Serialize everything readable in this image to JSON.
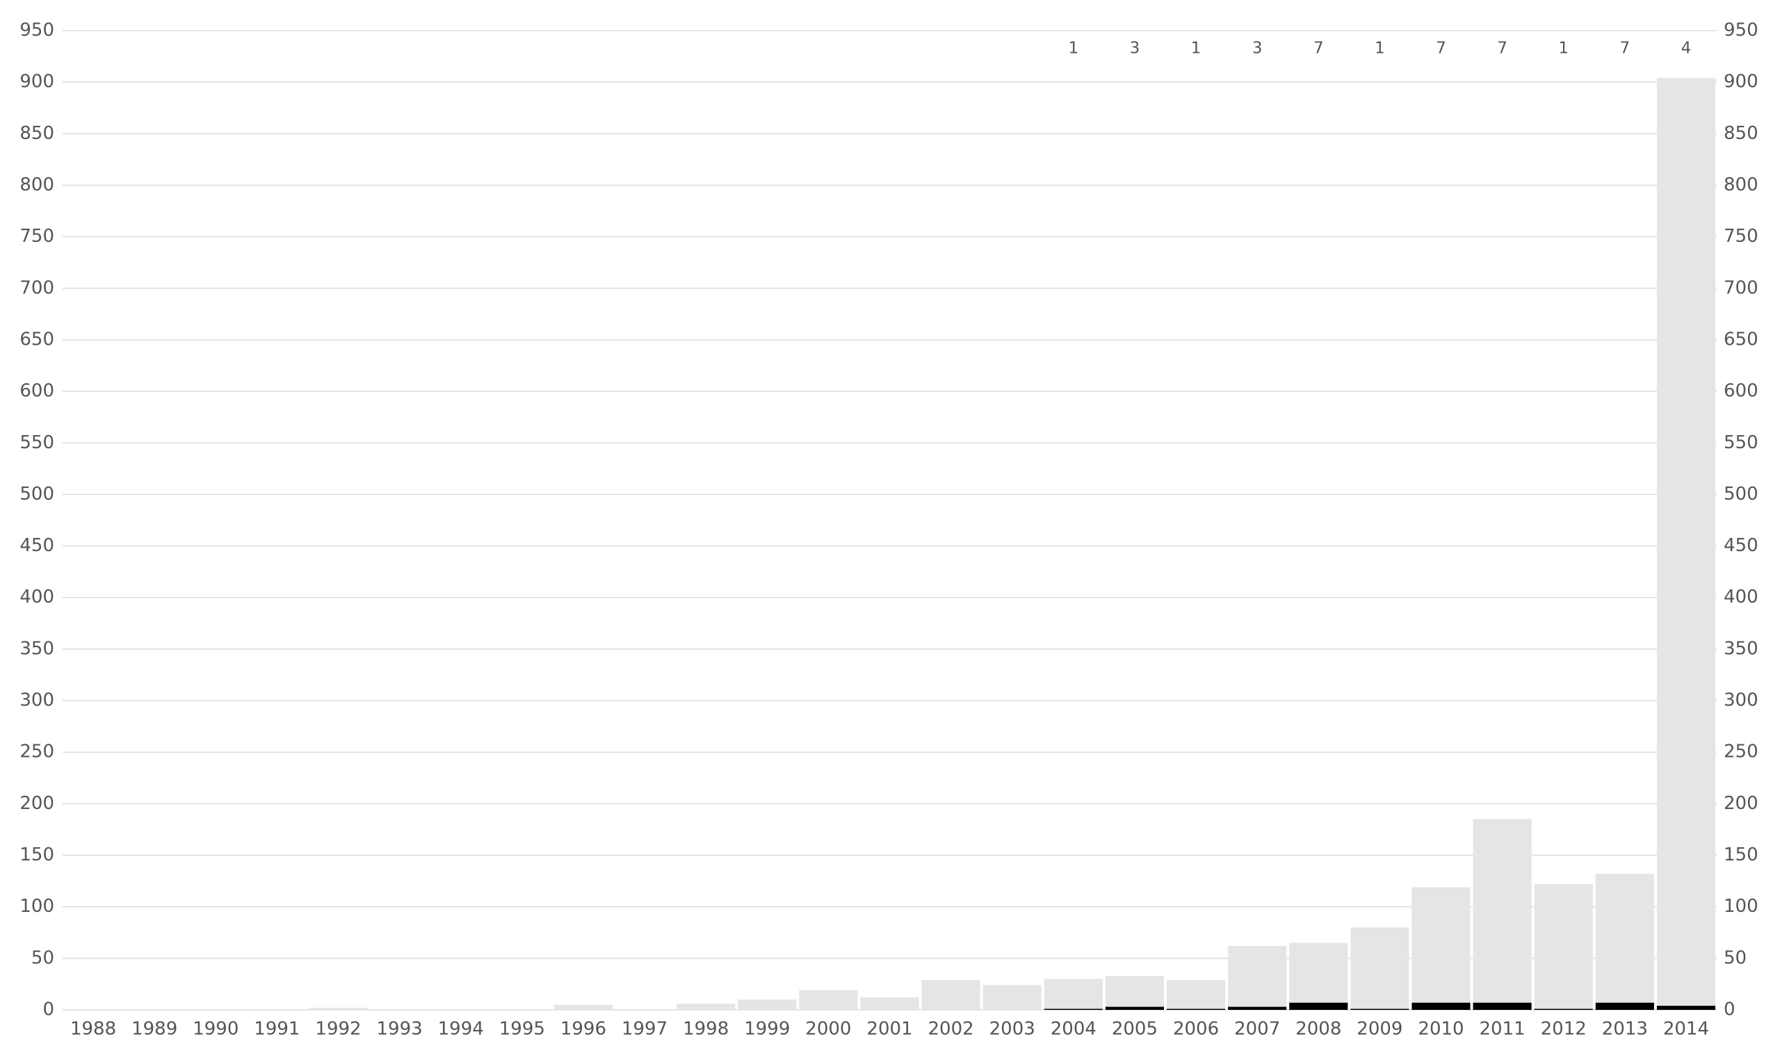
{
  "chart_data": {
    "type": "stacked-bar",
    "categories": [
      "1988",
      "1989",
      "1990",
      "1991",
      "1992",
      "1993",
      "1994",
      "1995",
      "1996",
      "1997",
      "1998",
      "1999",
      "2000",
      "2001",
      "2002",
      "2003",
      "2004",
      "2005",
      "2006",
      "2007",
      "2008",
      "2009",
      "2010",
      "2011",
      "2012",
      "2013",
      "2014"
    ],
    "series": [
      {
        "color": "#000000",
        "values": [
          null,
          null,
          null,
          null,
          null,
          null,
          null,
          null,
          null,
          null,
          null,
          null,
          null,
          null,
          null,
          null,
          1,
          3,
          1,
          3,
          7,
          1,
          7,
          7,
          1,
          7,
          4
        ]
      },
      {
        "color": "#e5e5e5",
        "values": [
          0,
          0,
          0,
          0,
          2,
          0,
          0,
          0,
          5,
          0,
          6,
          10,
          19,
          12,
          29,
          24,
          29,
          30,
          28,
          59,
          58,
          79,
          112,
          178,
          121,
          125,
          900
        ]
      }
    ],
    "ylim": [
      0,
      950
    ],
    "yticks": [
      0,
      50,
      100,
      150,
      200,
      250,
      300,
      350,
      400,
      450,
      500,
      550,
      600,
      650,
      700,
      750,
      800,
      850,
      900,
      950
    ],
    "y2lim": [
      0,
      950
    ],
    "y2ticks": [
      0,
      50,
      100,
      150,
      200,
      250,
      300,
      350,
      400,
      450,
      500,
      550,
      600,
      650,
      700,
      750,
      800,
      850,
      900,
      950
    ],
    "grid": true
  }
}
